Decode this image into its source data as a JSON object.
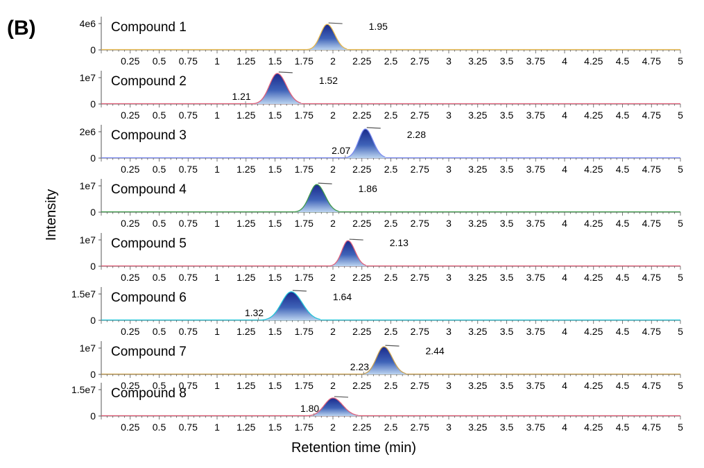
{
  "panel_label": "(B)",
  "ylabel": "Intensity",
  "xlabel": "Retention time (min)",
  "chart_data": {
    "type": "line",
    "x_range": [
      0,
      5
    ],
    "x_ticks": [
      "0.25",
      "0.5",
      "0.75",
      "1",
      "1.25",
      "1.5",
      "1.75",
      "2",
      "2.25",
      "2.5",
      "2.75",
      "3",
      "3.25",
      "3.5",
      "3.75",
      "4",
      "4.25",
      "4.5",
      "4.75",
      "5"
    ],
    "xlabel": "Retention time (min)",
    "ylabel": "Intensity",
    "grid": false,
    "panels": [
      {
        "name": "Compound 1",
        "ymax_label": "4e6",
        "ymax": 4000000,
        "trace_color": "#e8b84a",
        "peaks": [
          {
            "rt": 1.95,
            "height": 0.88,
            "width": 0.055,
            "fill": true,
            "label": "1.95"
          }
        ]
      },
      {
        "name": "Compound 2",
        "ymax_label": "1e7",
        "ymax": 10000000,
        "trace_color": "#e0607a",
        "peaks": [
          {
            "rt": 1.52,
            "height": 1.05,
            "width": 0.065,
            "fill": true,
            "label": "1.52"
          },
          {
            "rt": 1.21,
            "height": 0.0,
            "width": 0.05,
            "fill": false,
            "label": "1.21"
          }
        ]
      },
      {
        "name": "Compound 3",
        "ymax_label": "2e6",
        "ymax": 2000000,
        "trace_color": "#7c8cf0",
        "peaks": [
          {
            "rt": 2.28,
            "height": 1.0,
            "width": 0.055,
            "fill": true,
            "label": "2.28"
          },
          {
            "rt": 2.07,
            "height": 0.0,
            "width": 0.05,
            "fill": false,
            "label": "2.07"
          }
        ]
      },
      {
        "name": "Compound 4",
        "ymax_label": "1e7",
        "ymax": 10000000,
        "trace_color": "#3f9a4a",
        "peaks": [
          {
            "rt": 1.86,
            "height": 0.95,
            "width": 0.06,
            "fill": true,
            "label": "1.86"
          }
        ]
      },
      {
        "name": "Compound 5",
        "ymax_label": "1e7",
        "ymax": 10000000,
        "trace_color": "#e0607a",
        "peaks": [
          {
            "rt": 2.13,
            "height": 0.88,
            "width": 0.05,
            "fill": true,
            "label": "2.13"
          }
        ]
      },
      {
        "name": "Compound 6",
        "ymax_label": "1.5e7",
        "ymax": 15000000,
        "trace_color": "#22c4d8",
        "peaks": [
          {
            "rt": 1.64,
            "height": 0.98,
            "width": 0.08,
            "fill": true,
            "label": "1.64"
          },
          {
            "rt": 1.32,
            "height": 0.0,
            "width": 0.05,
            "fill": false,
            "label": "1.32"
          }
        ]
      },
      {
        "name": "Compound 7",
        "ymax_label": "1e7",
        "ymax": 10000000,
        "trace_color": "#c9a050",
        "peaks": [
          {
            "rt": 2.44,
            "height": 0.95,
            "width": 0.06,
            "fill": true,
            "label": "2.44"
          },
          {
            "rt": 2.23,
            "height": 0.0,
            "width": 0.05,
            "fill": false,
            "label": "2.23"
          }
        ]
      },
      {
        "name": "Compound 8",
        "ymax_label": "1.5e7",
        "ymax": 15000000,
        "trace_color": "#e0607a",
        "peaks": [
          {
            "rt": 2.0,
            "height": 0.62,
            "width": 0.07,
            "fill": true,
            "label": ""
          },
          {
            "rt": 1.8,
            "height": 0.0,
            "width": 0.05,
            "fill": false,
            "label": "1.80"
          }
        ]
      }
    ]
  }
}
